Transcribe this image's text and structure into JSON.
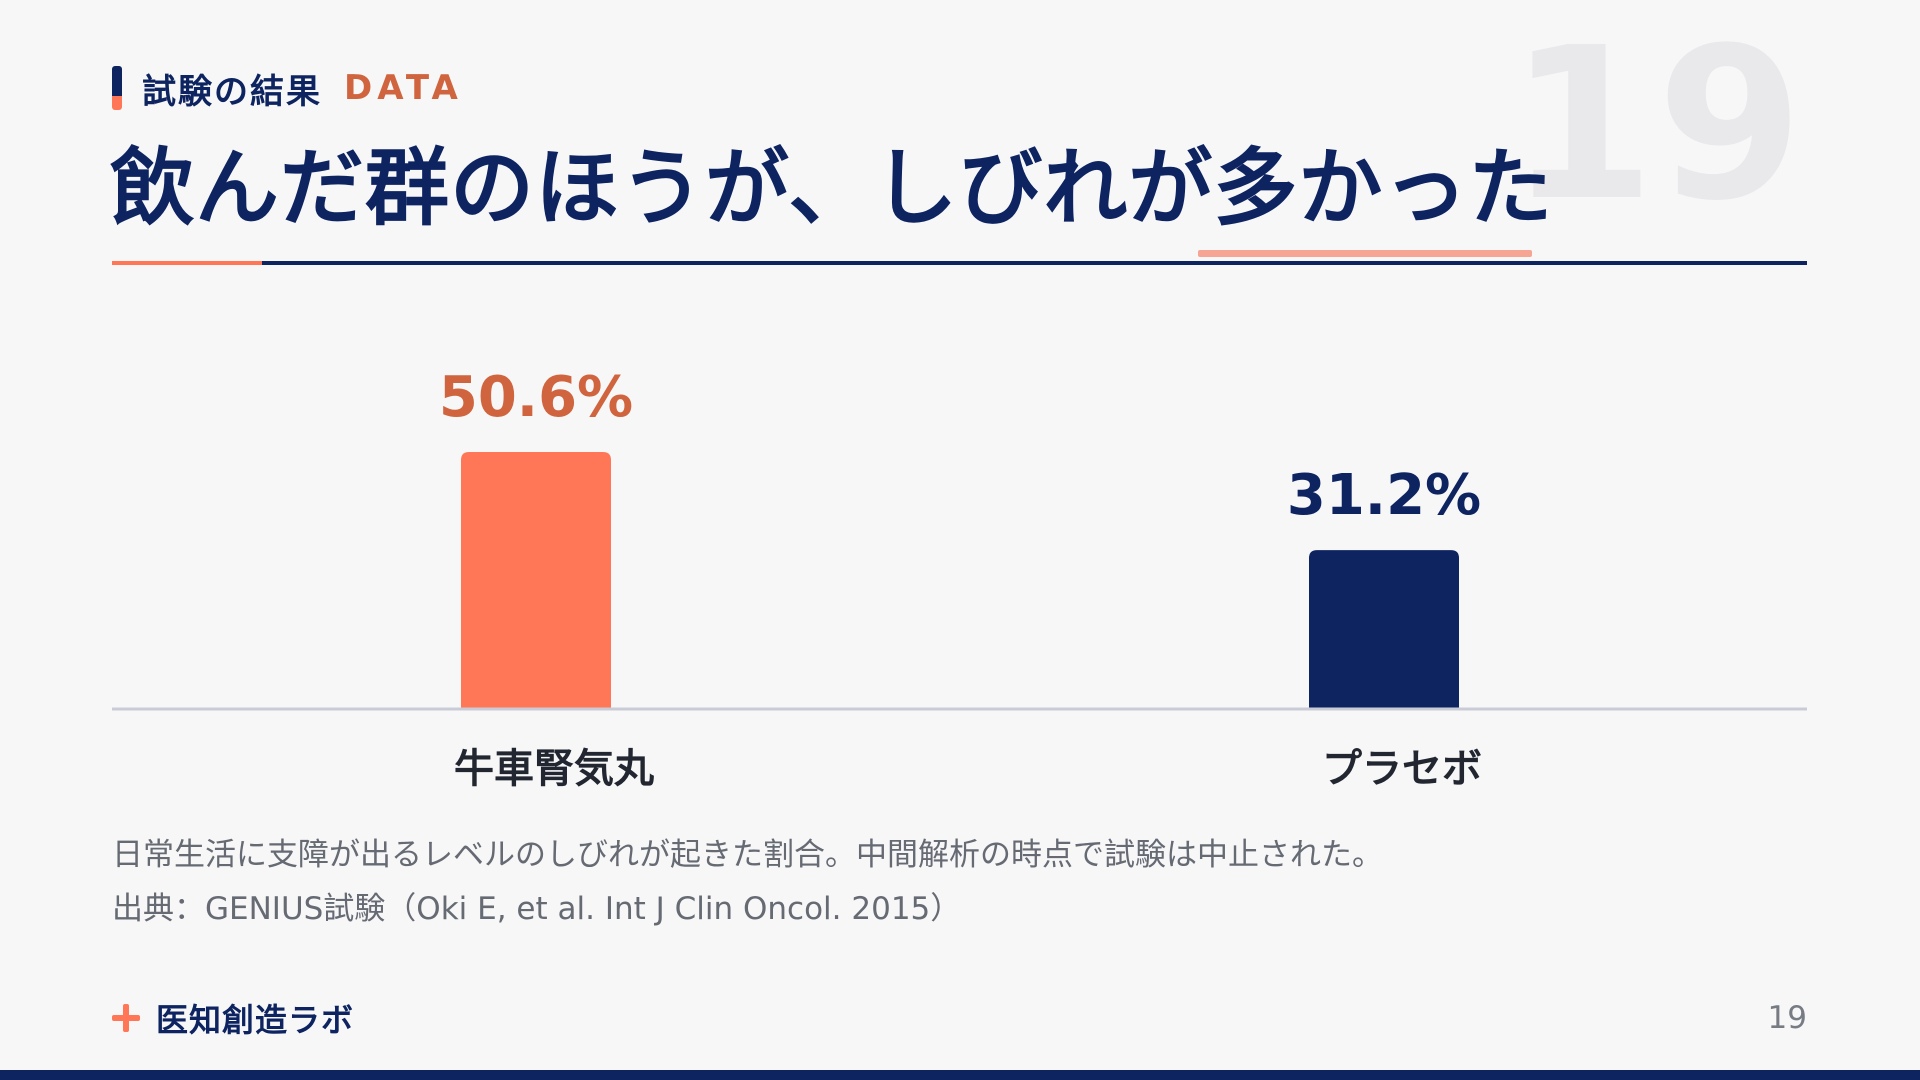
{
  "header": {
    "section_label": "試験の結果",
    "section_tag": "DATA",
    "title": "飲んだ群のほうが、しびれが多かった",
    "page_watermark": "19"
  },
  "chart_data": {
    "type": "bar",
    "categories": [
      "牛車腎気丸",
      "プラセボ"
    ],
    "values": [
      50.6,
      31.2
    ],
    "value_labels": [
      "50.6%",
      "31.2%"
    ],
    "unit": "%",
    "title": "",
    "xlabel": "",
    "ylabel": "",
    "ylim": [
      0,
      100
    ],
    "grid": false,
    "colors": [
      "#ff7757",
      "#0e2461"
    ],
    "label_colors": [
      "#d0643e",
      "#0e2461"
    ]
  },
  "caption": {
    "line1": "日常生活に支障が出るレベルのしびれが起きた割合。中間解析の時点で試験は中止された。",
    "line2": "出典：GENIUS試験（Oki E, et al. Int J Clin Oncol. 2015）"
  },
  "footer": {
    "brand": "医知創造ラボ",
    "page_number": "19"
  },
  "colors": {
    "navy": "#0e2461",
    "coral": "#ff7757",
    "coral_text": "#d0643e",
    "background": "#f7f7f8"
  },
  "icons": {
    "brand_mark": "plus-icon"
  }
}
